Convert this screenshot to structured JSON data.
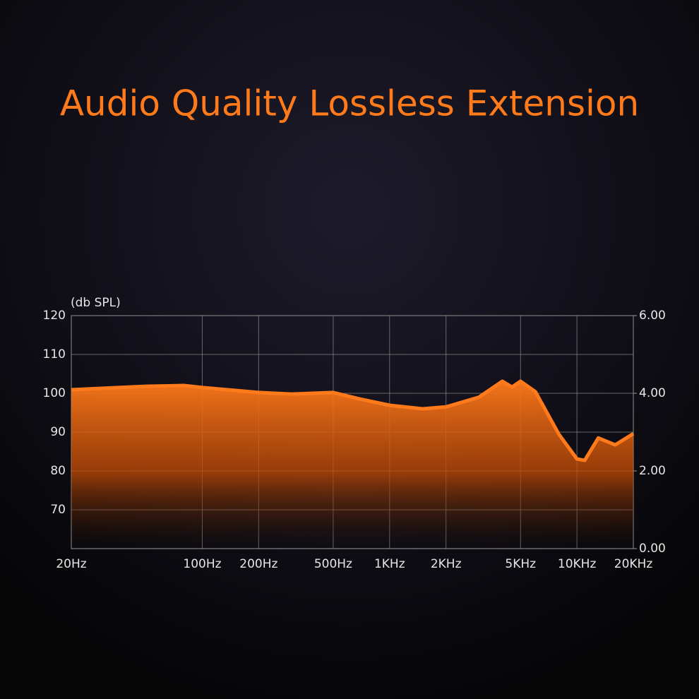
{
  "chart_data": {
    "type": "area",
    "title": "Audio Quality Lossless Extension",
    "y_label": "(db SPL)",
    "x_scale": "log",
    "color": "#ff7a1a",
    "grid": true,
    "x": [
      20,
      50,
      80,
      100,
      200,
      300,
      500,
      700,
      1000,
      1500,
      2000,
      3000,
      4000,
      4500,
      5000,
      6000,
      8000,
      10000,
      11000,
      13000,
      16000,
      20000
    ],
    "values": [
      100.9,
      101.8,
      102,
      101.5,
      100.2,
      99.8,
      100.2,
      98.5,
      96.9,
      96,
      96.5,
      99,
      103.1,
      101.6,
      103.1,
      100.4,
      89.5,
      83.1,
      82.7,
      88.5,
      86.7,
      89.6
    ],
    "xlim": [
      20,
      20000
    ],
    "xticks": [
      {
        "value": 20,
        "label": "20Hz"
      },
      {
        "value": 100,
        "label": "100Hz"
      },
      {
        "value": 200,
        "label": "200Hz"
      },
      {
        "value": 500,
        "label": "500Hz"
      },
      {
        "value": 1000,
        "label": "1KHz"
      },
      {
        "value": 2000,
        "label": "2KHz"
      },
      {
        "value": 5000,
        "label": "5KHz"
      },
      {
        "value": 10000,
        "label": "10KHz"
      },
      {
        "value": 20000,
        "label": "20KHz"
      }
    ],
    "ylim": [
      60,
      120
    ],
    "yticks": [
      70,
      80,
      90,
      100,
      110,
      120
    ],
    "y2lim": [
      0,
      6
    ],
    "y2ticks": [
      {
        "value": 0,
        "label": "0.00"
      },
      {
        "value": 2,
        "label": "2.00"
      },
      {
        "value": 4,
        "label": "4.00"
      },
      {
        "value": 6,
        "label": "6.00"
      }
    ]
  }
}
